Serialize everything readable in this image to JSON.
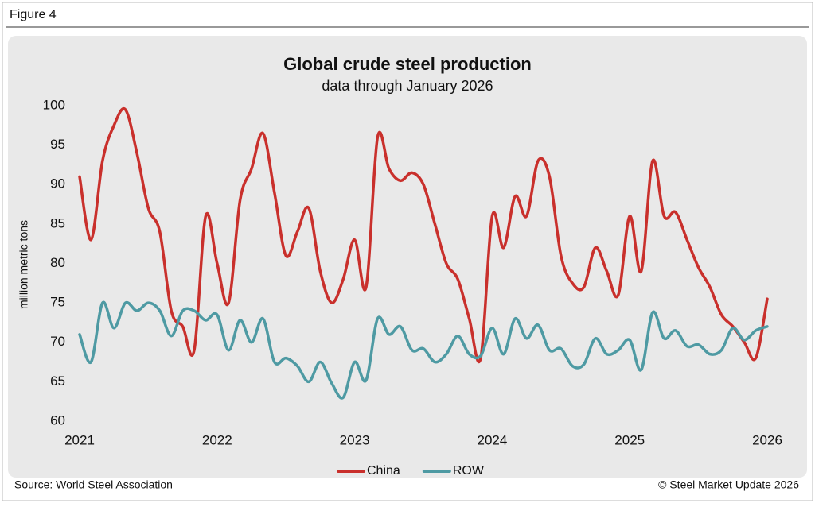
{
  "figure_label": "Figure 4",
  "chart_data": {
    "type": "line",
    "title": "Global crude steel production",
    "subtitle": "data through January 2026",
    "y_label": "million metric tons",
    "categories": [
      "2021",
      null,
      null,
      null,
      null,
      null,
      null,
      null,
      null,
      null,
      null,
      null,
      "2022",
      null,
      null,
      null,
      null,
      null,
      null,
      null,
      null,
      null,
      null,
      null,
      "2023",
      null,
      null,
      null,
      null,
      null,
      null,
      null,
      null,
      null,
      null,
      null,
      "2024",
      null,
      null,
      null,
      null,
      null,
      null,
      null,
      null,
      null,
      null,
      null,
      "2025",
      null,
      null,
      null,
      null,
      null,
      null,
      null,
      null,
      null,
      null,
      null,
      "2026"
    ],
    "series": [
      {
        "name": "China",
        "color": "#c9302c",
        "values": [
          91,
          83,
          93,
          97.5,
          99.5,
          94,
          87,
          84,
          74,
          72,
          69,
          86,
          80,
          75,
          88,
          92,
          96.5,
          89,
          81,
          84,
          87,
          79,
          75,
          78,
          83,
          77,
          96,
          92,
          90.5,
          91.5,
          90,
          85,
          80,
          78,
          73,
          68,
          86,
          82,
          88.5,
          86,
          93,
          91,
          81,
          77.5,
          77,
          82,
          79,
          76,
          86,
          79,
          93,
          86,
          86.5,
          83,
          79.5,
          77,
          73.5,
          72,
          70,
          68,
          75.5
        ]
      },
      {
        "name": "ROW",
        "color": "#4e9aa3",
        "values": [
          71,
          67.5,
          75,
          71.8,
          75,
          74,
          75,
          74,
          70.8,
          74,
          74,
          72.8,
          73.5,
          69,
          72.8,
          70,
          73,
          67.5,
          68,
          67,
          65,
          67.5,
          64.8,
          63,
          67.5,
          65.2,
          73,
          71,
          72,
          69,
          69.2,
          67.5,
          68.5,
          70.8,
          68.5,
          68.3,
          71.8,
          68.5,
          73,
          70.5,
          72.2,
          69,
          69.2,
          67,
          67.2,
          70.5,
          68.5,
          69,
          70.3,
          66.5,
          73.8,
          70.5,
          71.5,
          69.5,
          69.7,
          68.5,
          69,
          71.8,
          70.3,
          71.5,
          72
        ]
      }
    ],
    "ylim": [
      60,
      100
    ],
    "yticks": [
      60,
      65,
      70,
      75,
      80,
      85,
      90,
      95,
      100
    ],
    "grid": false,
    "legend": "bottom"
  },
  "source": "Source: World Steel Association",
  "copyright": "© Steel Market Update 2026"
}
